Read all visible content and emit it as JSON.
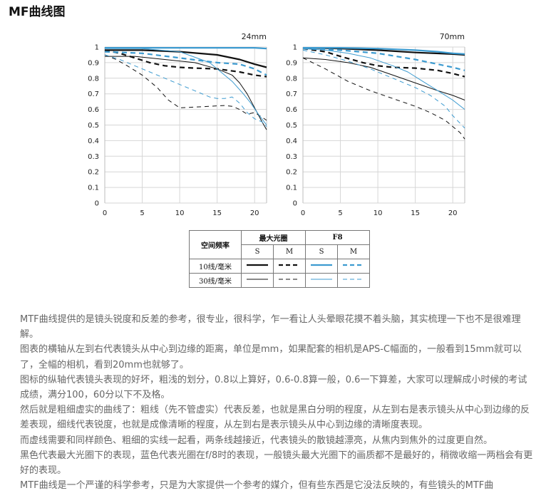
{
  "page": {
    "heading": "MF曲线图",
    "colors": {
      "max_aperture": "#111111",
      "f8": "#3d9bd0",
      "grid": "#d6d6d6",
      "body_text": "#666666"
    }
  },
  "legend": {
    "row_header": "空间频率",
    "group_max_aperture": "最大光圈",
    "group_f8": "F8",
    "s_label": "S",
    "m_label": "M",
    "rows": [
      {
        "label": "10线/毫米",
        "weight": "thick"
      },
      {
        "label": "30线/毫米",
        "weight": "thin"
      }
    ]
  },
  "chart_data": [
    {
      "type": "line",
      "title": "24mm",
      "xlim": [
        0,
        21.6
      ],
      "ylim": [
        0,
        1
      ],
      "xticks": [
        0,
        5,
        10,
        15,
        20
      ],
      "yticks": [
        "0",
        "0.1",
        "0.2",
        "0.3",
        "0.4",
        "0.5",
        "0.6",
        "0.7",
        "0.8",
        "0.9",
        "1"
      ],
      "grid": true,
      "series": [
        {
          "aperture": "max",
          "lpmm": 10,
          "orientation": "S",
          "color": "#111111",
          "style": "solid",
          "weight": "thick",
          "x": [
            0,
            5,
            10,
            15,
            18,
            20,
            21.6
          ],
          "y": [
            0.98,
            0.98,
            0.97,
            0.95,
            0.92,
            0.89,
            0.87
          ]
        },
        {
          "aperture": "max",
          "lpmm": 10,
          "orientation": "M",
          "color": "#111111",
          "style": "dashed",
          "weight": "thick",
          "x": [
            0,
            2,
            4,
            6,
            8,
            10,
            12,
            15,
            18,
            20,
            21.6
          ],
          "y": [
            0.98,
            0.96,
            0.93,
            0.9,
            0.88,
            0.87,
            0.865,
            0.86,
            0.84,
            0.82,
            0.81
          ]
        },
        {
          "aperture": "max",
          "lpmm": 30,
          "orientation": "S",
          "color": "#111111",
          "style": "solid",
          "weight": "thin",
          "x": [
            0,
            4,
            8,
            12,
            15,
            17,
            18,
            19,
            20,
            21,
            21.6
          ],
          "y": [
            0.94,
            0.94,
            0.92,
            0.9,
            0.86,
            0.82,
            0.77,
            0.7,
            0.61,
            0.52,
            0.47
          ]
        },
        {
          "aperture": "max",
          "lpmm": 30,
          "orientation": "M",
          "color": "#111111",
          "style": "dashed",
          "weight": "thin",
          "x": [
            0,
            1.5,
            3,
            5,
            7,
            8.5,
            10,
            12,
            14,
            16,
            17,
            18,
            19,
            20,
            21,
            21.6
          ],
          "y": [
            0.95,
            0.92,
            0.88,
            0.82,
            0.74,
            0.66,
            0.61,
            0.615,
            0.62,
            0.625,
            0.62,
            0.6,
            0.57,
            0.58,
            0.55,
            0.53
          ]
        },
        {
          "aperture": "F8",
          "lpmm": 10,
          "orientation": "S",
          "color": "#3d9bd0",
          "style": "solid",
          "weight": "thick",
          "x": [
            0,
            5,
            10,
            15,
            20,
            21.6
          ],
          "y": [
            0.995,
            0.995,
            0.995,
            0.995,
            0.995,
            0.99
          ]
        },
        {
          "aperture": "F8",
          "lpmm": 10,
          "orientation": "M",
          "color": "#3d9bd0",
          "style": "dashed",
          "weight": "thick",
          "x": [
            0,
            5,
            10,
            15,
            18,
            20,
            21.6
          ],
          "y": [
            0.97,
            0.96,
            0.93,
            0.9,
            0.89,
            0.86,
            0.82
          ]
        },
        {
          "aperture": "F8",
          "lpmm": 30,
          "orientation": "S",
          "color": "#3d9bd0",
          "style": "solid",
          "weight": "thin",
          "x": [
            0,
            5,
            10,
            14,
            17,
            18.5,
            19.5,
            20.5,
            21.6
          ],
          "y": [
            0.99,
            0.99,
            0.97,
            0.9,
            0.78,
            0.7,
            0.64,
            0.57,
            0.5
          ]
        },
        {
          "aperture": "F8",
          "lpmm": 30,
          "orientation": "M",
          "color": "#3d9bd0",
          "style": "dashed",
          "weight": "thin",
          "x": [
            0,
            2,
            4,
            6,
            8,
            10,
            12,
            14,
            15,
            16,
            17,
            18,
            19,
            20,
            21,
            21.6
          ],
          "y": [
            0.95,
            0.92,
            0.88,
            0.84,
            0.8,
            0.76,
            0.72,
            0.68,
            0.67,
            0.67,
            0.68,
            0.64,
            0.58,
            0.54,
            0.52,
            0.49
          ]
        }
      ]
    },
    {
      "type": "line",
      "title": "70mm",
      "xlim": [
        0,
        21.6
      ],
      "ylim": [
        0,
        1
      ],
      "xticks": [
        0,
        5,
        10,
        15,
        20
      ],
      "yticks": [
        "0",
        "0.1",
        "0.2",
        "0.3",
        "0.4",
        "0.5",
        "0.6",
        "0.7",
        "0.8",
        "0.9",
        "1"
      ],
      "grid": true,
      "series": [
        {
          "aperture": "max",
          "lpmm": 10,
          "orientation": "S",
          "color": "#111111",
          "style": "solid",
          "weight": "thick",
          "x": [
            0,
            5,
            10,
            15,
            20,
            21.6
          ],
          "y": [
            0.995,
            0.99,
            0.98,
            0.965,
            0.955,
            0.95
          ]
        },
        {
          "aperture": "max",
          "lpmm": 10,
          "orientation": "M",
          "color": "#111111",
          "style": "dashed",
          "weight": "thick",
          "x": [
            0,
            3,
            5,
            8,
            10,
            12,
            15,
            18,
            20,
            21.6
          ],
          "y": [
            0.99,
            0.97,
            0.94,
            0.9,
            0.88,
            0.87,
            0.865,
            0.85,
            0.83,
            0.81
          ]
        },
        {
          "aperture": "max",
          "lpmm": 30,
          "orientation": "S",
          "color": "#111111",
          "style": "solid",
          "weight": "thin",
          "x": [
            0,
            3,
            6,
            9,
            12,
            15,
            18,
            20,
            21.6
          ],
          "y": [
            0.93,
            0.92,
            0.9,
            0.87,
            0.82,
            0.77,
            0.72,
            0.69,
            0.66
          ]
        },
        {
          "aperture": "max",
          "lpmm": 30,
          "orientation": "M",
          "color": "#111111",
          "style": "dashed",
          "weight": "thin",
          "x": [
            0,
            3,
            6,
            9,
            12,
            15,
            17,
            19,
            21,
            21.6
          ],
          "y": [
            0.93,
            0.86,
            0.78,
            0.72,
            0.67,
            0.62,
            0.58,
            0.53,
            0.45,
            0.41
          ]
        },
        {
          "aperture": "F8",
          "lpmm": 10,
          "orientation": "S",
          "color": "#3d9bd0",
          "style": "solid",
          "weight": "thick",
          "x": [
            0,
            5,
            10,
            15,
            18,
            20,
            21.6
          ],
          "y": [
            0.995,
            0.995,
            0.99,
            0.98,
            0.97,
            0.96,
            0.955
          ]
        },
        {
          "aperture": "F8",
          "lpmm": 10,
          "orientation": "M",
          "color": "#3d9bd0",
          "style": "dashed",
          "weight": "thick",
          "x": [
            0,
            5,
            10,
            15,
            18,
            20,
            21.6
          ],
          "y": [
            0.99,
            0.98,
            0.96,
            0.92,
            0.89,
            0.87,
            0.85
          ]
        },
        {
          "aperture": "F8",
          "lpmm": 30,
          "orientation": "S",
          "color": "#3d9bd0",
          "style": "solid",
          "weight": "thin",
          "x": [
            0,
            3,
            6,
            9,
            12,
            14,
            16,
            18,
            20,
            21.6
          ],
          "y": [
            0.99,
            0.98,
            0.96,
            0.93,
            0.88,
            0.84,
            0.78,
            0.72,
            0.66,
            0.6
          ]
        },
        {
          "aperture": "F8",
          "lpmm": 30,
          "orientation": "M",
          "color": "#3d9bd0",
          "style": "dashed",
          "weight": "thin",
          "x": [
            0,
            3,
            6,
            9,
            12,
            15,
            17,
            19,
            20,
            21.6
          ],
          "y": [
            0.98,
            0.95,
            0.91,
            0.86,
            0.8,
            0.74,
            0.69,
            0.62,
            0.56,
            0.48
          ]
        }
      ]
    }
  ],
  "notes": [
    "MTF曲线提供的是镜头锐度和反差的参考，很专业，很科学，乍一看让人头晕眼花摸不着头脑，其实梳理一下也不是很难理解。",
    "图表的横轴从左到右代表镜头从中心到边缘的距离，单位是mm，如果配套的相机是APS-C幅面的，一般看到15mm就可以了，全幅的相机，看到20mm也就够了。",
    "图标的纵轴代表镜头表现的好坏，粗浅的划分，0.8以上算好，0.6-0.8算一般，0.6一下算差，大家可以理解成小时候的考试成绩，满分100，60分以下不及格。",
    "然后就是粗细虚实的曲线了：粗线（先不管虚实）代表反差，也就是黑白分明的程度，从左到右是表示镜头从中心到边缘的反差表现，细线代表锐度，也就是成像清晰的程度，从左到右是表示镜头从中心到边缘的清晰度表现。",
    "而虚线需要和同样颜色、粗细的实线一起看，两条线越接近，代表镜头的散镜越漂亮，从焦内到焦外的过度更自然。",
    "黑色代表最大光圈下的表现，蓝色代表光圈在f/8时的表现，一般镜头最大光圈下的画质都不是最好的，稍微收缩一两档会有更好的表现。",
    "MTF曲线是一个严谨的科学参考，只是为大家提供一个参考的媒介，但有些东西是它没法反映的，有些镜头的MTF曲"
  ]
}
